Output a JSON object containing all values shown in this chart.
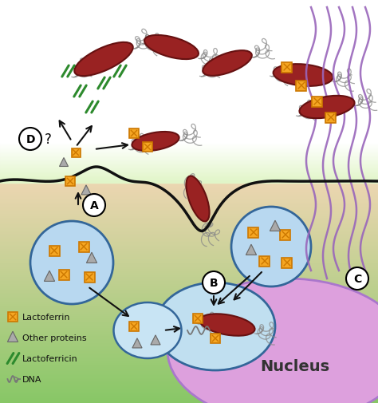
{
  "bg_top_color": "#ffffff",
  "bg_bottom_color": "#88cc55",
  "cell_membrane_color": "#111111",
  "nucleus_color": "#dda0dd",
  "nucleus_border": "#aa77cc",
  "granule_color": "#b8d8f0",
  "granule_border": "#336699",
  "bacteria_color": "#992222",
  "bacteria_border": "#661111",
  "lactoferrin_color": "#f5a623",
  "lactoferrin_border": "#cc7700",
  "protein_color": "#999999",
  "protein_border": "#555555",
  "lactoferricin_color": "#2d8a2d",
  "dna_color": "#888888",
  "purple_strand_color": "#9966bb",
  "arrow_color": "#111111",
  "label_circle_color": "#ffffff",
  "label_A": "A",
  "label_B": "B",
  "label_C": "C",
  "label_D": "D",
  "legend_items": [
    "Lactoferrin",
    "Other proteins",
    "Lactoferricin",
    "DNA"
  ],
  "nucleus_label": "Nucleus"
}
